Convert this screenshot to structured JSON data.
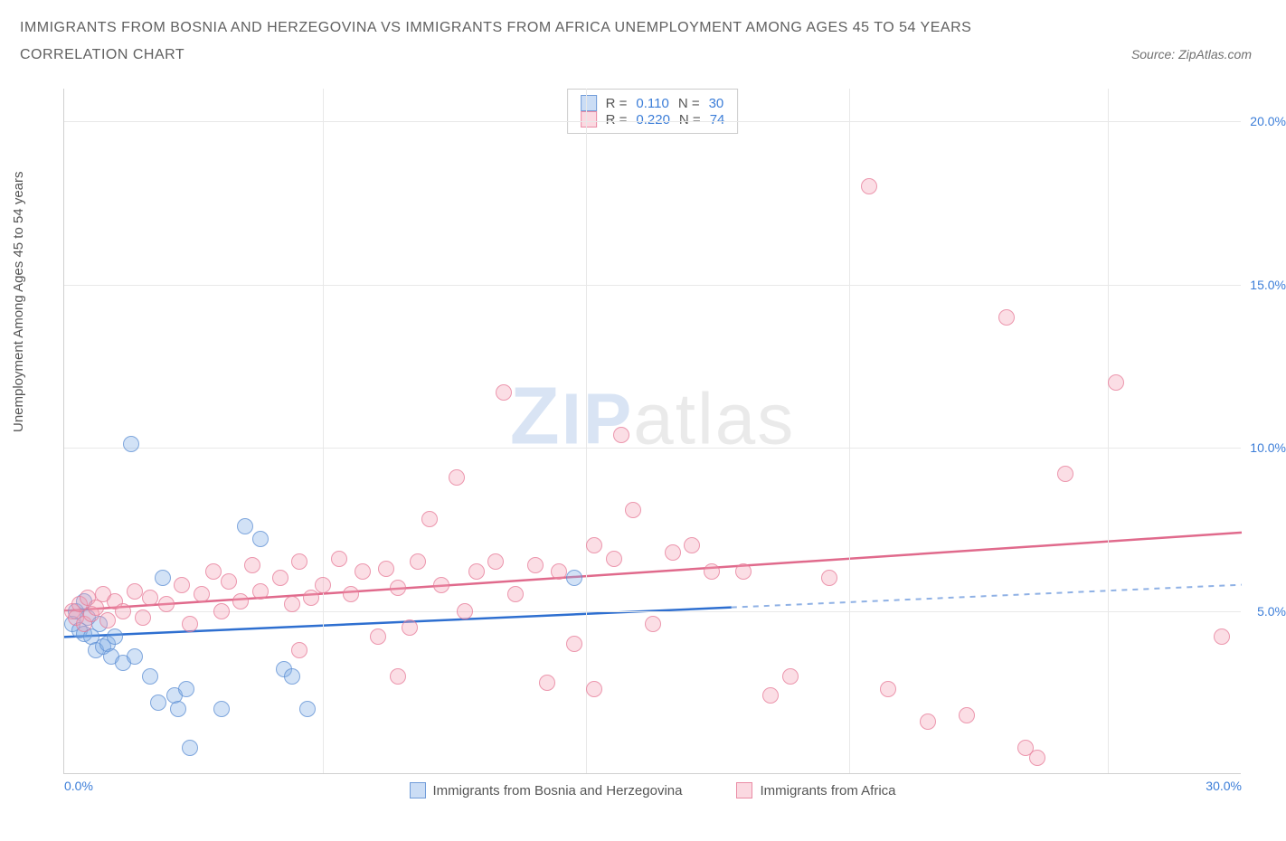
{
  "title": "IMMIGRANTS FROM BOSNIA AND HERZEGOVINA VS IMMIGRANTS FROM AFRICA UNEMPLOYMENT AMONG AGES 45 TO 54 YEARS",
  "subtitle": "CORRELATION CHART",
  "source": "Source: ZipAtlas.com",
  "y_axis_label": "Unemployment Among Ages 45 to 54 years",
  "legend_stats": {
    "series_a": {
      "R_label": "R =",
      "R": "0.110",
      "N_label": "N =",
      "N": "30"
    },
    "series_b": {
      "R_label": "R =",
      "R": "0.220",
      "N_label": "N =",
      "N": "74"
    }
  },
  "bottom_legend": {
    "a": "Immigrants from Bosnia and Herzegovina",
    "b": "Immigrants from Africa"
  },
  "watermark": {
    "part1": "ZIP",
    "part2": "atlas"
  },
  "chart": {
    "type": "scatter",
    "xlim": [
      0,
      30
    ],
    "ylim": [
      0,
      21
    ],
    "x_ticks": [
      0.0,
      30.0
    ],
    "x_tick_labels": [
      "0.0%",
      "30.0%"
    ],
    "y_ticks": [
      5.0,
      10.0,
      15.0,
      20.0
    ],
    "y_tick_labels": [
      "5.0%",
      "10.0%",
      "15.0%",
      "20.0%"
    ],
    "x_grid": [
      6.6,
      13.3,
      20.0,
      26.6
    ],
    "background_color": "#ffffff",
    "grid_color": "#e8e8e8",
    "axis_color": "#d0d0d0",
    "tick_label_color": "#3b7dd8",
    "marker_radius": 9,
    "series": [
      {
        "name": "Immigrants from Bosnia and Herzegovina",
        "color_fill": "rgba(126,171,229,0.35)",
        "color_stroke": "rgba(90,140,210,0.7)",
        "trend_color": "#2e6fd0",
        "trend_dash_color": "#8fb1e5",
        "trend": {
          "x1": 0,
          "y1": 4.2,
          "x2": 30,
          "y2": 5.8,
          "solid_until_x": 17
        },
        "points": [
          [
            0.2,
            4.6
          ],
          [
            0.3,
            5.0
          ],
          [
            0.4,
            4.4
          ],
          [
            0.5,
            4.3
          ],
          [
            0.5,
            5.3
          ],
          [
            0.6,
            4.8
          ],
          [
            0.7,
            4.2
          ],
          [
            0.8,
            3.8
          ],
          [
            0.9,
            4.6
          ],
          [
            1.0,
            3.9
          ],
          [
            1.1,
            4.0
          ],
          [
            1.2,
            3.6
          ],
          [
            1.3,
            4.2
          ],
          [
            1.5,
            3.4
          ],
          [
            1.7,
            10.1
          ],
          [
            1.8,
            3.6
          ],
          [
            2.2,
            3.0
          ],
          [
            2.4,
            2.2
          ],
          [
            2.5,
            6.0
          ],
          [
            2.8,
            2.4
          ],
          [
            2.9,
            2.0
          ],
          [
            3.1,
            2.6
          ],
          [
            3.2,
            0.8
          ],
          [
            4.0,
            2.0
          ],
          [
            4.6,
            7.6
          ],
          [
            5.0,
            7.2
          ],
          [
            5.6,
            3.2
          ],
          [
            5.8,
            3.0
          ],
          [
            6.2,
            2.0
          ],
          [
            13.0,
            6.0
          ]
        ]
      },
      {
        "name": "Immigrants from Africa",
        "color_fill": "rgba(244,160,180,0.35)",
        "color_stroke": "rgba(230,120,150,0.7)",
        "trend_color": "#e06a8c",
        "trend": {
          "x1": 0,
          "y1": 5.0,
          "x2": 30,
          "y2": 7.4
        },
        "points": [
          [
            0.2,
            5.0
          ],
          [
            0.3,
            4.8
          ],
          [
            0.4,
            5.2
          ],
          [
            0.5,
            4.6
          ],
          [
            0.6,
            5.4
          ],
          [
            0.7,
            4.9
          ],
          [
            0.8,
            5.1
          ],
          [
            1.0,
            5.5
          ],
          [
            1.1,
            4.7
          ],
          [
            1.3,
            5.3
          ],
          [
            1.5,
            5.0
          ],
          [
            1.8,
            5.6
          ],
          [
            2.0,
            4.8
          ],
          [
            2.2,
            5.4
          ],
          [
            2.6,
            5.2
          ],
          [
            3.0,
            5.8
          ],
          [
            3.2,
            4.6
          ],
          [
            3.5,
            5.5
          ],
          [
            3.8,
            6.2
          ],
          [
            4.0,
            5.0
          ],
          [
            4.2,
            5.9
          ],
          [
            4.5,
            5.3
          ],
          [
            4.8,
            6.4
          ],
          [
            5.0,
            5.6
          ],
          [
            5.5,
            6.0
          ],
          [
            5.8,
            5.2
          ],
          [
            6.0,
            6.5
          ],
          [
            6.3,
            5.4
          ],
          [
            6.6,
            5.8
          ],
          [
            7.0,
            6.6
          ],
          [
            7.3,
            5.5
          ],
          [
            7.6,
            6.2
          ],
          [
            8.0,
            4.2
          ],
          [
            8.2,
            6.3
          ],
          [
            8.5,
            5.7
          ],
          [
            8.8,
            4.5
          ],
          [
            9.0,
            6.5
          ],
          [
            9.3,
            7.8
          ],
          [
            9.6,
            5.8
          ],
          [
            10.0,
            9.1
          ],
          [
            10.2,
            5.0
          ],
          [
            10.5,
            6.2
          ],
          [
            11.0,
            6.5
          ],
          [
            11.2,
            11.7
          ],
          [
            11.5,
            5.5
          ],
          [
            12.0,
            6.4
          ],
          [
            12.3,
            2.8
          ],
          [
            12.6,
            6.2
          ],
          [
            13.0,
            4.0
          ],
          [
            13.5,
            7.0
          ],
          [
            14.0,
            6.6
          ],
          [
            14.2,
            10.4
          ],
          [
            14.5,
            8.1
          ],
          [
            15.0,
            4.6
          ],
          [
            15.5,
            6.8
          ],
          [
            16.0,
            7.0
          ],
          [
            17.3,
            6.2
          ],
          [
            18.0,
            2.4
          ],
          [
            18.5,
            3.0
          ],
          [
            20.5,
            18.0
          ],
          [
            21.0,
            2.6
          ],
          [
            22.0,
            1.6
          ],
          [
            23.0,
            1.8
          ],
          [
            24.0,
            14.0
          ],
          [
            24.5,
            0.8
          ],
          [
            24.8,
            0.5
          ],
          [
            25.5,
            9.2
          ],
          [
            26.8,
            12.0
          ],
          [
            29.5,
            4.2
          ],
          [
            13.5,
            2.6
          ],
          [
            8.5,
            3.0
          ],
          [
            6.0,
            3.8
          ],
          [
            19.5,
            6.0
          ],
          [
            16.5,
            6.2
          ]
        ]
      }
    ]
  }
}
